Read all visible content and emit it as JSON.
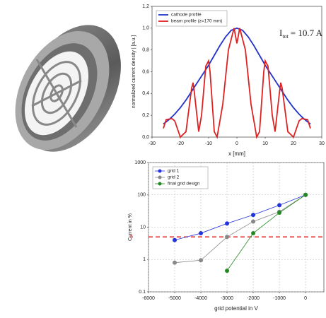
{
  "chart_data": [
    {
      "type": "line",
      "ylabel": "normalized current density | [a.u.]",
      "xlabel": "x [mm]",
      "annotation": {
        "main": "I",
        "sub": "tot",
        "rest": "= 10.7 A"
      },
      "xlim": [
        -30,
        30
      ],
      "xticks": [
        -30,
        -20,
        -10,
        0,
        10,
        20,
        30
      ],
      "ylim": [
        0,
        1.2
      ],
      "yticks": [
        {
          "value": 0,
          "label": "0,0"
        },
        {
          "value": 0.2,
          "label": "0,2"
        },
        {
          "value": 0.4,
          "label": "0,4"
        },
        {
          "value": 0.6,
          "label": "0,6"
        },
        {
          "value": 0.8,
          "label": "0,8"
        },
        {
          "value": 1.0,
          "label": "1,0"
        },
        {
          "value": 1.2,
          "label": "1,2"
        }
      ],
      "grid": false,
      "legend": "upper left",
      "series": [
        {
          "name": "cathode profile",
          "color": "#2233cc",
          "x": [
            -26,
            -24,
            -22,
            -20,
            -18,
            -16,
            -14,
            -12,
            -10,
            -8,
            -6,
            -4,
            -2,
            0,
            2,
            4,
            6,
            8,
            10,
            12,
            14,
            16,
            18,
            20,
            22,
            24,
            26
          ],
          "values": [
            0.12,
            0.16,
            0.21,
            0.27,
            0.34,
            0.42,
            0.5,
            0.58,
            0.66,
            0.75,
            0.84,
            0.92,
            0.98,
            1.0,
            0.98,
            0.92,
            0.84,
            0.75,
            0.66,
            0.58,
            0.5,
            0.42,
            0.34,
            0.27,
            0.21,
            0.16,
            0.12
          ]
        },
        {
          "name": "beam profile (z=170 mm)",
          "color": "#dd2222",
          "x": [
            -26,
            -25,
            -23,
            -22,
            -20,
            -18,
            -16,
            -15.5,
            -15,
            -13.5,
            -12.5,
            -11,
            -10,
            -9.5,
            -8,
            -7,
            -5,
            -3,
            -1,
            0,
            1,
            3,
            5,
            7,
            8,
            9.5,
            10,
            11,
            12.5,
            13.5,
            15,
            15.5,
            16,
            18,
            20,
            22,
            23,
            25,
            26
          ],
          "values": [
            0.08,
            0.16,
            0.17,
            0.15,
            0.0,
            0.05,
            0.45,
            0.5,
            0.4,
            0.05,
            0.2,
            0.65,
            0.7,
            0.6,
            0.05,
            0.0,
            0.3,
            0.8,
            1.0,
            0.86,
            1.0,
            0.8,
            0.3,
            0.0,
            0.05,
            0.6,
            0.7,
            0.65,
            0.2,
            0.05,
            0.4,
            0.5,
            0.45,
            0.05,
            0.0,
            0.15,
            0.17,
            0.16,
            0.08
          ]
        }
      ]
    },
    {
      "type": "line",
      "markers": true,
      "yscale": "log",
      "ylabel": "Current in %",
      "xlabel": "grid potential in V",
      "xlim": [
        -6000,
        700
      ],
      "xticks": [
        -6000,
        -5000,
        -4000,
        -3000,
        -2000,
        -1000,
        0
      ],
      "ylim": [
        0.1,
        1000
      ],
      "yticks": [
        0.1,
        1,
        10,
        100,
        1000
      ],
      "grid": true,
      "legend": "upper left",
      "hline": {
        "value": 5,
        "color": "#e02020"
      },
      "series": [
        {
          "name": "grid 1",
          "color": "#2233dd",
          "x": [
            -5000,
            -4000,
            -3000,
            -2000,
            -1000,
            0
          ],
          "values": [
            4,
            6.5,
            13,
            24,
            48,
            100
          ]
        },
        {
          "name": "grid 2",
          "color": "#888888",
          "x": [
            -5000,
            -4000,
            -3000,
            -2000,
            -1000,
            0
          ],
          "values": [
            0.8,
            0.95,
            5,
            15,
            30,
            100
          ]
        },
        {
          "name": "final grid design",
          "color": "#228822",
          "x": [
            -3000,
            -2000,
            -1000,
            0
          ],
          "values": [
            0.45,
            6.5,
            28,
            100
          ]
        }
      ]
    }
  ]
}
